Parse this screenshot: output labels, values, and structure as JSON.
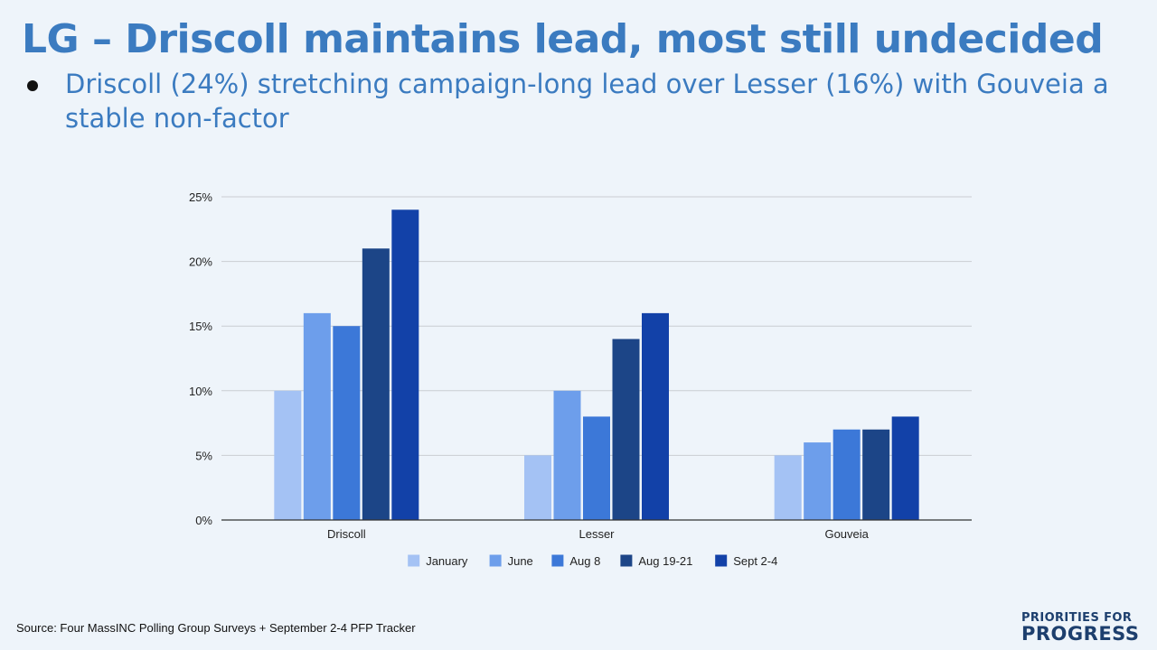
{
  "slide": {
    "title": "LG – Driscoll maintains lead, most still undecided",
    "bullet": "Driscoll (24%) stretching campaign-long lead over Lesser (16%) with Gouveia a stable non-factor",
    "source": "Source: Four MassINC Polling Group Surveys + September 2-4 PFP Tracker",
    "logo_top": "PRIORITIES FOR",
    "logo_bottom": "PROGRESS"
  },
  "chart_data": {
    "type": "bar",
    "categories": [
      "Driscoll",
      "Lesser",
      "Gouveia"
    ],
    "series": [
      {
        "name": "January",
        "color": "#a4c2f4",
        "values": [
          10,
          5,
          5
        ]
      },
      {
        "name": "June",
        "color": "#6d9eeb",
        "values": [
          16,
          10,
          6
        ]
      },
      {
        "name": "Aug 8",
        "color": "#3c78d8",
        "values": [
          15,
          8,
          7
        ]
      },
      {
        "name": "Aug 19-21",
        "color": "#1c4587",
        "values": [
          21,
          14,
          7
        ]
      },
      {
        "name": "Sept 2-4",
        "color": "#1241a8",
        "values": [
          24,
          16,
          8
        ]
      }
    ],
    "ylim": [
      0,
      25
    ],
    "yticks": [
      0,
      5,
      10,
      15,
      20,
      25
    ],
    "ytick_labels": [
      "0%",
      "5%",
      "10%",
      "15%",
      "20%",
      "25%"
    ],
    "grid": true,
    "legend": "bottom"
  }
}
